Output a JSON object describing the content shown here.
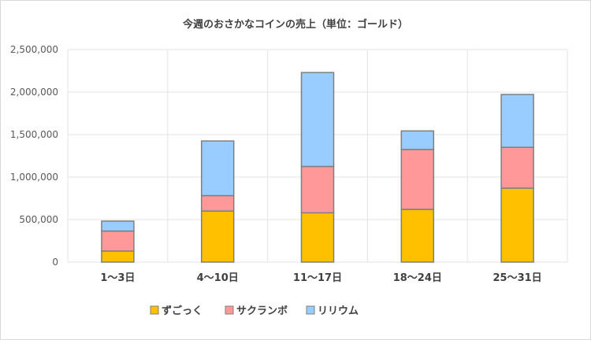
{
  "chart_data": {
    "type": "bar",
    "stacked": true,
    "title": "今週のおさかなコインの売上（単位：ゴールド）",
    "xlabel": "",
    "ylabel": "",
    "ylim": [
      0,
      2500000
    ],
    "yticks": [
      "0",
      "500,000",
      "1,000,000",
      "1,500,000",
      "2,000,000",
      "2,500,000"
    ],
    "ytick_values": [
      0,
      500000,
      1000000,
      1500000,
      2000000,
      2500000
    ],
    "grid": true,
    "legend_position": "bottom",
    "categories": [
      "1～3日",
      "4～10日",
      "11～17日",
      "18～24日",
      "25～31日"
    ],
    "series": [
      {
        "name": "ずごっく",
        "color": "#FFC000",
        "values": [
          130000,
          600000,
          580000,
          620000,
          870000
        ]
      },
      {
        "name": "サクランボ",
        "color": "#FF9999",
        "values": [
          235000,
          182000,
          545000,
          705000,
          480000
        ]
      },
      {
        "name": "リリウム",
        "color": "#99CCFF",
        "values": [
          117000,
          643000,
          1105000,
          218000,
          622000
        ]
      }
    ]
  }
}
